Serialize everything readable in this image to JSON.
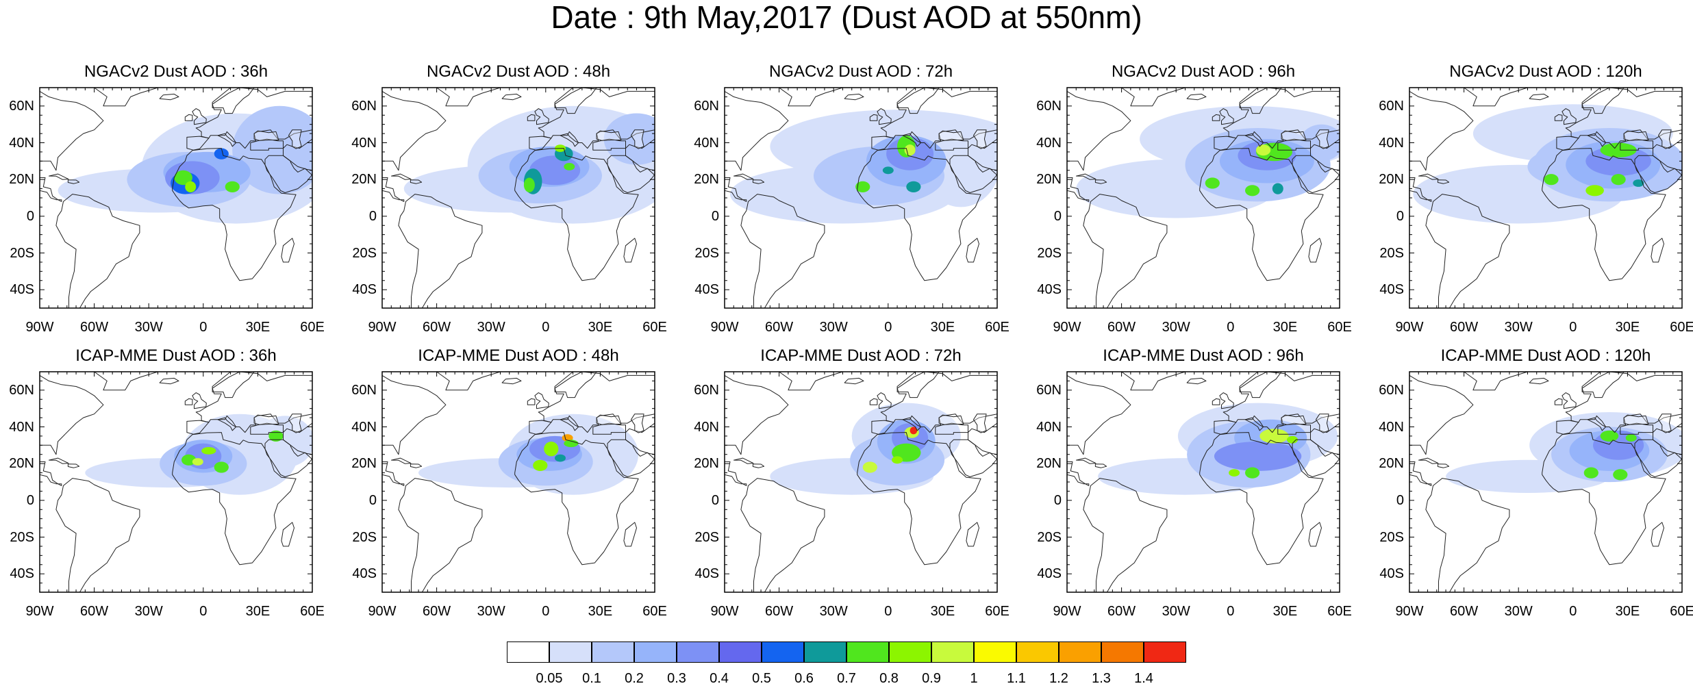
{
  "title": "Date : 9th May,2017 (Dust AOD at 550nm)",
  "panels": [
    {
      "title": "NGACv2 Dust AOD : 36h",
      "model": "NGACv2",
      "lead_hours": 36
    },
    {
      "title": "NGACv2 Dust AOD : 48h",
      "model": "NGACv2",
      "lead_hours": 48
    },
    {
      "title": "NGACv2 Dust AOD : 72h",
      "model": "NGACv2",
      "lead_hours": 72
    },
    {
      "title": "NGACv2 Dust AOD : 96h",
      "model": "NGACv2",
      "lead_hours": 96
    },
    {
      "title": "NGACv2 Dust AOD : 120h",
      "model": "NGACv2",
      "lead_hours": 120
    },
    {
      "title": "ICAP-MME Dust AOD : 36h",
      "model": "ICAP-MME",
      "lead_hours": 36
    },
    {
      "title": "ICAP-MME Dust AOD : 48h",
      "model": "ICAP-MME",
      "lead_hours": 48
    },
    {
      "title": "ICAP-MME Dust AOD : 72h",
      "model": "ICAP-MME",
      "lead_hours": 72
    },
    {
      "title": "ICAP-MME Dust AOD : 96h",
      "model": "ICAP-MME",
      "lead_hours": 96
    },
    {
      "title": "ICAP-MME Dust AOD : 120h",
      "model": "ICAP-MME",
      "lead_hours": 120
    }
  ],
  "map_extent": {
    "lon": [
      -90,
      60
    ],
    "lat": [
      -50,
      70
    ]
  },
  "lat_ticks": [
    {
      "value": 60,
      "label": "60N"
    },
    {
      "value": 40,
      "label": "40N"
    },
    {
      "value": 20,
      "label": "20N"
    },
    {
      "value": 0,
      "label": "0"
    },
    {
      "value": -20,
      "label": "20S"
    },
    {
      "value": -40,
      "label": "40S"
    }
  ],
  "lon_ticks": [
    {
      "value": -90,
      "label": "90W"
    },
    {
      "value": -60,
      "label": "60W"
    },
    {
      "value": -30,
      "label": "30W"
    },
    {
      "value": 0,
      "label": "0"
    },
    {
      "value": 30,
      "label": "30E"
    },
    {
      "value": 60,
      "label": "60E"
    }
  ],
  "colorbar": {
    "colors": [
      "#ffffff",
      "#d6e0fa",
      "#b4c8fa",
      "#96b4fa",
      "#7d91f5",
      "#6468ee",
      "#1464f0",
      "#0f9a9a",
      "#50e61e",
      "#8cf500",
      "#c8fa3c",
      "#fafa00",
      "#fac800",
      "#faa000",
      "#f57800",
      "#f02814"
    ],
    "labels": [
      "0.05",
      "0.1",
      "0.2",
      "0.3",
      "0.4",
      "0.5",
      "0.6",
      "0.7",
      "0.8",
      "0.9",
      "1",
      "1.1",
      "1.2",
      "1.3",
      "1.4"
    ]
  }
}
